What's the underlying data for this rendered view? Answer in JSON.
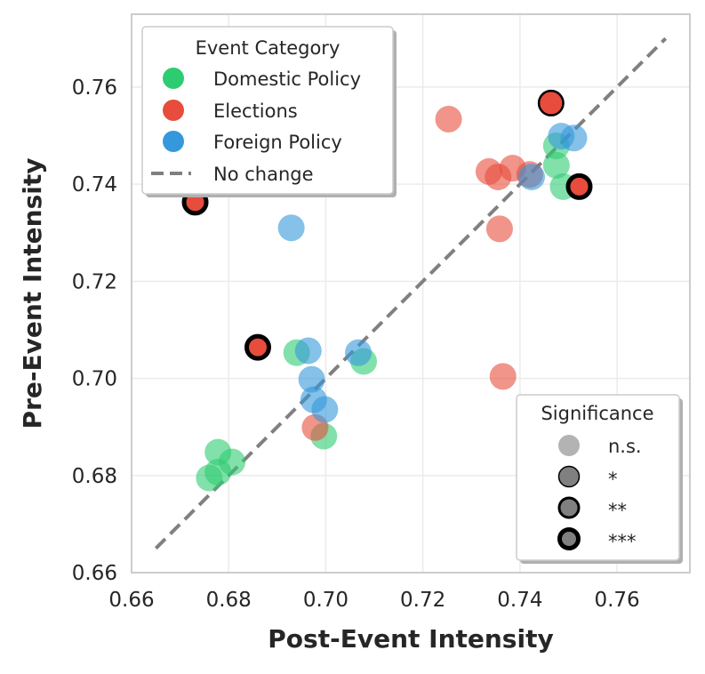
{
  "chart_data": {
    "type": "scatter",
    "xlabel": "Post-Event Intensity",
    "ylabel": "Pre-Event Intensity",
    "xlim": [
      0.66,
      0.775
    ],
    "ylim": [
      0.66,
      0.775
    ],
    "xticks": [
      "0.66",
      "0.68",
      "0.70",
      "0.72",
      "0.74",
      "0.76"
    ],
    "yticks": [
      "0.66",
      "0.68",
      "0.70",
      "0.72",
      "0.74",
      "0.76"
    ],
    "grid": true,
    "reference_line": {
      "label": "No change",
      "from": [
        0.665,
        0.665
      ],
      "to": [
        0.77,
        0.77
      ],
      "color": "#808080",
      "style": "dashed"
    },
    "legend_category": {
      "title": "Event Category",
      "placement": "top-left",
      "entries": [
        {
          "label": "Domestic Policy",
          "color": "#2ecc71"
        },
        {
          "label": "Elections",
          "color": "#e74c3c"
        },
        {
          "label": "Foreign Policy",
          "color": "#3498db"
        },
        {
          "label": "No change",
          "color": "#808080"
        }
      ]
    },
    "legend_significance": {
      "title": "Significance",
      "placement": "bottom-right",
      "entries": [
        "n.s.",
        "*",
        "**",
        "***"
      ]
    },
    "series": [
      {
        "name": "Domestic Policy",
        "color": "#2ecc71",
        "points": [
          {
            "x": 0.676,
            "y": 0.6795,
            "sig": "n.s."
          },
          {
            "x": 0.6778,
            "y": 0.6807,
            "sig": "n.s."
          },
          {
            "x": 0.6778,
            "y": 0.6848,
            "sig": "n.s."
          },
          {
            "x": 0.6807,
            "y": 0.6828,
            "sig": "n.s."
          },
          {
            "x": 0.694,
            "y": 0.7053,
            "sig": "n.s."
          },
          {
            "x": 0.7078,
            "y": 0.7035,
            "sig": "n.s."
          },
          {
            "x": 0.6996,
            "y": 0.6881,
            "sig": "n.s."
          },
          {
            "x": 0.7475,
            "y": 0.7479,
            "sig": "n.s."
          },
          {
            "x": 0.7475,
            "y": 0.7439,
            "sig": "n.s."
          },
          {
            "x": 0.7489,
            "y": 0.7395,
            "sig": "n.s."
          }
        ]
      },
      {
        "name": "Elections",
        "color": "#e74c3c",
        "points": [
          {
            "x": 0.7253,
            "y": 0.7534,
            "sig": "n.s."
          },
          {
            "x": 0.7336,
            "y": 0.7426,
            "sig": "n.s."
          },
          {
            "x": 0.7355,
            "y": 0.7415,
            "sig": "n.s."
          },
          {
            "x": 0.7385,
            "y": 0.7433,
            "sig": "n.s."
          },
          {
            "x": 0.742,
            "y": 0.742,
            "sig": "n.s."
          },
          {
            "x": 0.7358,
            "y": 0.7308,
            "sig": "n.s."
          },
          {
            "x": 0.7365,
            "y": 0.7004,
            "sig": "n.s."
          },
          {
            "x": 0.6978,
            "y": 0.6899,
            "sig": "n.s."
          },
          {
            "x": 0.7464,
            "y": 0.7567,
            "sig": "**"
          },
          {
            "x": 0.7522,
            "y": 0.7395,
            "sig": "***"
          },
          {
            "x": 0.6731,
            "y": 0.7363,
            "sig": "***"
          },
          {
            "x": 0.686,
            "y": 0.7064,
            "sig": "***"
          }
        ]
      },
      {
        "name": "Foreign Policy",
        "color": "#3498db",
        "points": [
          {
            "x": 0.6929,
            "y": 0.731,
            "sig": "n.s."
          },
          {
            "x": 0.6964,
            "y": 0.7057,
            "sig": "n.s."
          },
          {
            "x": 0.6971,
            "y": 0.6998,
            "sig": "n.s."
          },
          {
            "x": 0.6975,
            "y": 0.6956,
            "sig": "n.s."
          },
          {
            "x": 0.6998,
            "y": 0.6936,
            "sig": "n.s."
          },
          {
            "x": 0.7067,
            "y": 0.7053,
            "sig": "n.s."
          },
          {
            "x": 0.7424,
            "y": 0.7415,
            "sig": "n.s."
          },
          {
            "x": 0.7485,
            "y": 0.7499,
            "sig": "n.s."
          },
          {
            "x": 0.7511,
            "y": 0.7495,
            "sig": "n.s."
          }
        ]
      }
    ]
  }
}
